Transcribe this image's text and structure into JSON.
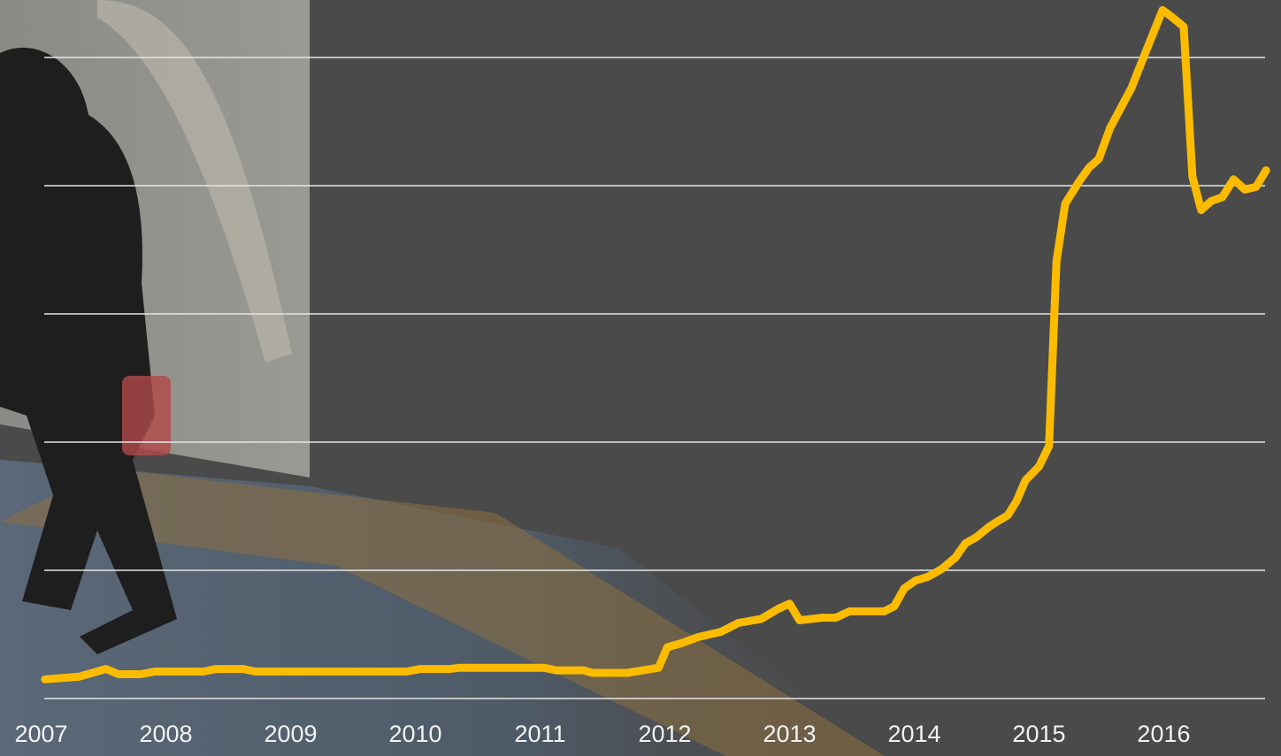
{
  "chart_data": {
    "type": "line",
    "color": "#fbbc00",
    "grid": true,
    "x": [
      2007.03,
      2007.3,
      2007.52,
      2007.62,
      2007.8,
      2007.91,
      2008.3,
      2008.4,
      2008.62,
      2008.72,
      2009.93,
      2010.04,
      2010.28,
      2010.35,
      2011.03,
      2011.13,
      2011.35,
      2011.42,
      2011.7,
      2011.95,
      2012.02,
      2012.13,
      2012.27,
      2012.45,
      2012.59,
      2012.77,
      2012.91,
      2013.0,
      2013.08,
      2013.26,
      2013.37,
      2013.48,
      2013.76,
      2013.84,
      2013.92,
      2014.01,
      2014.11,
      2014.22,
      2014.33,
      2014.41,
      2014.5,
      2014.6,
      2014.68,
      2014.75,
      2014.82,
      2014.89,
      2015.0,
      2015.08,
      2015.14,
      2015.21,
      2015.32,
      2015.4,
      2015.48,
      2015.57,
      2015.74,
      2015.85,
      2015.99,
      2016.06,
      2016.16,
      2016.23,
      2016.3,
      2016.38,
      2016.47,
      2016.56,
      2016.65,
      2016.74,
      2016.82
    ],
    "values": [
      0.15,
      0.17,
      0.23,
      0.19,
      0.19,
      0.21,
      0.21,
      0.23,
      0.23,
      0.21,
      0.21,
      0.23,
      0.23,
      0.24,
      0.24,
      0.22,
      0.22,
      0.2,
      0.2,
      0.24,
      0.4,
      0.43,
      0.48,
      0.52,
      0.59,
      0.62,
      0.7,
      0.74,
      0.61,
      0.63,
      0.63,
      0.68,
      0.68,
      0.72,
      0.86,
      0.92,
      0.95,
      1.01,
      1.1,
      1.21,
      1.26,
      1.34,
      1.39,
      1.43,
      1.54,
      1.7,
      1.81,
      1.97,
      3.41,
      3.86,
      4.03,
      4.14,
      4.21,
      4.45,
      4.76,
      5.03,
      5.37,
      5.32,
      5.24,
      4.07,
      3.81,
      3.88,
      3.91,
      4.05,
      3.97,
      3.99,
      4.12
    ],
    "xlim": [
      2006.67,
      2016.94
    ],
    "xticks": [
      2007,
      2008,
      2009,
      2010,
      2011,
      2012,
      2013,
      2014,
      2015,
      2016
    ],
    "ylim": [
      0,
      5.4
    ],
    "yticks": [
      0,
      1,
      2,
      3,
      4,
      5
    ]
  }
}
